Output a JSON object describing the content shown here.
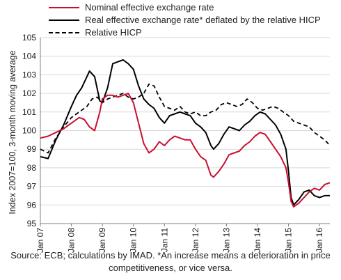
{
  "chart_data": {
    "type": "line",
    "title": "",
    "xlabel": "",
    "ylabel": "Index 2007=100, 3-month moving average",
    "ylim": [
      95,
      105
    ],
    "yticks": [
      95,
      96,
      97,
      98,
      99,
      100,
      101,
      102,
      103,
      104,
      105
    ],
    "xticks": [
      "Jan 07",
      "Jan 08",
      "Jan 09",
      "Jan 10",
      "Jan 11",
      "Jan 12",
      "Jan 13",
      "Jan 14",
      "Jan 15",
      "Jan 16"
    ],
    "x_range": [
      "2007-01",
      "2016-05"
    ],
    "grid": true,
    "legend_position": "top-left",
    "source": "Source: ECB; calculations by IMAD. *An increase means a deterioration in price competitiveness, or vice versa.",
    "series": [
      {
        "name": "Nominal effective exchange rate",
        "color": "#c8102e",
        "style": "solid",
        "points": [
          [
            "2007-01",
            99.6
          ],
          [
            "2007-04",
            99.7
          ],
          [
            "2007-07",
            99.9
          ],
          [
            "2007-10",
            100.1
          ],
          [
            "2008-01",
            100.4
          ],
          [
            "2008-04",
            100.7
          ],
          [
            "2008-06",
            100.6
          ],
          [
            "2008-08",
            100.2
          ],
          [
            "2008-10",
            100.0
          ],
          [
            "2008-12",
            101.0
          ],
          [
            "2009-01",
            101.7
          ],
          [
            "2009-03",
            101.9
          ],
          [
            "2009-05",
            101.9
          ],
          [
            "2009-07",
            101.8
          ],
          [
            "2009-09",
            101.9
          ],
          [
            "2009-11",
            102.0
          ],
          [
            "2010-01",
            101.5
          ],
          [
            "2010-03",
            100.4
          ],
          [
            "2010-05",
            99.3
          ],
          [
            "2010-07",
            98.8
          ],
          [
            "2010-09",
            99.0
          ],
          [
            "2010-11",
            99.4
          ],
          [
            "2011-01",
            99.2
          ],
          [
            "2011-03",
            99.5
          ],
          [
            "2011-05",
            99.7
          ],
          [
            "2011-07",
            99.6
          ],
          [
            "2011-09",
            99.5
          ],
          [
            "2011-11",
            99.5
          ],
          [
            "2012-01",
            99.0
          ],
          [
            "2012-03",
            98.6
          ],
          [
            "2012-05",
            98.4
          ],
          [
            "2012-07",
            97.6
          ],
          [
            "2012-08",
            97.5
          ],
          [
            "2012-10",
            97.8
          ],
          [
            "2012-12",
            98.2
          ],
          [
            "2013-02",
            98.7
          ],
          [
            "2013-04",
            98.8
          ],
          [
            "2013-06",
            98.9
          ],
          [
            "2013-08",
            99.2
          ],
          [
            "2013-10",
            99.4
          ],
          [
            "2013-12",
            99.7
          ],
          [
            "2014-02",
            99.9
          ],
          [
            "2014-04",
            99.8
          ],
          [
            "2014-06",
            99.4
          ],
          [
            "2014-08",
            99.0
          ],
          [
            "2014-10",
            98.6
          ],
          [
            "2014-12",
            98.0
          ],
          [
            "2015-01",
            97.2
          ],
          [
            "2015-02",
            96.2
          ],
          [
            "2015-03",
            95.9
          ],
          [
            "2015-05",
            96.1
          ],
          [
            "2015-07",
            96.4
          ],
          [
            "2015-09",
            96.7
          ],
          [
            "2015-11",
            96.9
          ],
          [
            "2016-01",
            96.8
          ],
          [
            "2016-03",
            97.1
          ],
          [
            "2016-05",
            97.2
          ]
        ]
      },
      {
        "name": "Real effective exchange rate* deflated by the relative HICP",
        "color": "#000000",
        "style": "solid",
        "points": [
          [
            "2007-01",
            98.6
          ],
          [
            "2007-04",
            98.5
          ],
          [
            "2007-07",
            99.5
          ],
          [
            "2007-10",
            100.3
          ],
          [
            "2008-01",
            101.3
          ],
          [
            "2008-03",
            101.9
          ],
          [
            "2008-05",
            102.3
          ],
          [
            "2008-07",
            102.9
          ],
          [
            "2008-08",
            103.2
          ],
          [
            "2008-10",
            102.9
          ],
          [
            "2008-12",
            101.6
          ],
          [
            "2009-01",
            101.5
          ],
          [
            "2009-03",
            102.3
          ],
          [
            "2009-05",
            103.6
          ],
          [
            "2009-07",
            103.7
          ],
          [
            "2009-09",
            103.8
          ],
          [
            "2009-11",
            103.6
          ],
          [
            "2010-01",
            103.3
          ],
          [
            "2010-03",
            102.4
          ],
          [
            "2010-05",
            101.7
          ],
          [
            "2010-07",
            101.4
          ],
          [
            "2010-09",
            101.2
          ],
          [
            "2010-11",
            100.7
          ],
          [
            "2011-01",
            100.4
          ],
          [
            "2011-03",
            100.8
          ],
          [
            "2011-05",
            100.9
          ],
          [
            "2011-07",
            101.0
          ],
          [
            "2011-09",
            100.9
          ],
          [
            "2011-11",
            100.8
          ],
          [
            "2012-01",
            100.4
          ],
          [
            "2012-03",
            100.2
          ],
          [
            "2012-05",
            99.9
          ],
          [
            "2012-07",
            99.2
          ],
          [
            "2012-08",
            99.0
          ],
          [
            "2012-10",
            99.3
          ],
          [
            "2012-12",
            99.8
          ],
          [
            "2013-02",
            100.2
          ],
          [
            "2013-04",
            100.1
          ],
          [
            "2013-06",
            100.0
          ],
          [
            "2013-08",
            100.3
          ],
          [
            "2013-10",
            100.5
          ],
          [
            "2013-12",
            100.8
          ],
          [
            "2014-02",
            101.0
          ],
          [
            "2014-04",
            100.9
          ],
          [
            "2014-06",
            100.6
          ],
          [
            "2014-08",
            100.3
          ],
          [
            "2014-10",
            99.8
          ],
          [
            "2014-12",
            99.0
          ],
          [
            "2015-01",
            97.8
          ],
          [
            "2015-02",
            96.4
          ],
          [
            "2015-03",
            96.0
          ],
          [
            "2015-05",
            96.3
          ],
          [
            "2015-07",
            96.7
          ],
          [
            "2015-09",
            96.8
          ],
          [
            "2015-11",
            96.5
          ],
          [
            "2016-01",
            96.4
          ],
          [
            "2016-03",
            96.5
          ],
          [
            "2016-05",
            96.5
          ]
        ]
      },
      {
        "name": "Relative HICP",
        "color": "#000000",
        "style": "dashed",
        "points": [
          [
            "2007-01",
            99.0
          ],
          [
            "2007-04",
            98.8
          ],
          [
            "2007-07",
            99.6
          ],
          [
            "2007-10",
            100.2
          ],
          [
            "2008-01",
            100.7
          ],
          [
            "2008-04",
            101.0
          ],
          [
            "2008-07",
            101.3
          ],
          [
            "2008-09",
            101.7
          ],
          [
            "2008-11",
            101.8
          ],
          [
            "2009-01",
            101.5
          ],
          [
            "2009-03",
            101.7
          ],
          [
            "2009-05",
            101.8
          ],
          [
            "2009-07",
            101.9
          ],
          [
            "2009-09",
            102.0
          ],
          [
            "2009-11",
            101.8
          ],
          [
            "2010-01",
            101.7
          ],
          [
            "2010-03",
            101.8
          ],
          [
            "2010-05",
            102.0
          ],
          [
            "2010-07",
            102.5
          ],
          [
            "2010-09",
            102.4
          ],
          [
            "2010-11",
            101.8
          ],
          [
            "2011-01",
            101.3
          ],
          [
            "2011-03",
            101.2
          ],
          [
            "2011-05",
            101.1
          ],
          [
            "2011-07",
            101.3
          ],
          [
            "2011-09",
            101.0
          ],
          [
            "2011-11",
            100.9
          ],
          [
            "2012-01",
            101.0
          ],
          [
            "2012-03",
            100.8
          ],
          [
            "2012-05",
            100.8
          ],
          [
            "2012-07",
            101.0
          ],
          [
            "2012-09",
            101.1
          ],
          [
            "2012-11",
            101.4
          ],
          [
            "2013-01",
            101.5
          ],
          [
            "2013-03",
            101.4
          ],
          [
            "2013-05",
            101.3
          ],
          [
            "2013-07",
            101.4
          ],
          [
            "2013-09",
            101.7
          ],
          [
            "2013-11",
            101.5
          ],
          [
            "2014-01",
            101.2
          ],
          [
            "2014-03",
            101.1
          ],
          [
            "2014-05",
            101.2
          ],
          [
            "2014-07",
            101.3
          ],
          [
            "2014-09",
            101.2
          ],
          [
            "2014-11",
            101.0
          ],
          [
            "2015-01",
            100.8
          ],
          [
            "2015-03",
            100.5
          ],
          [
            "2015-05",
            100.4
          ],
          [
            "2015-07",
            100.3
          ],
          [
            "2015-09",
            100.2
          ],
          [
            "2015-11",
            99.9
          ],
          [
            "2016-01",
            99.7
          ],
          [
            "2016-03",
            99.5
          ],
          [
            "2016-05",
            99.2
          ]
        ]
      }
    ]
  }
}
